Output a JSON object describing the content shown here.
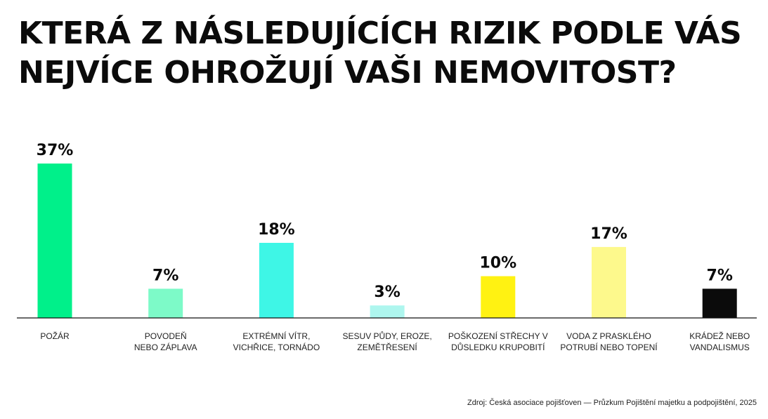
{
  "title": "KTERÁ Z NÁSLEDUJÍCÍCH RIZIK PODLE VÁS NEJVÍCE OHROŽUJÍ VAŠI NEMOVITOST?",
  "source": "Zdroj: Česká asociace pojišťoven — Průzkum Pojištění majetku a podpojištění, 2025",
  "chart_data": {
    "type": "bar",
    "title": "KTERÁ Z NÁSLEDUJÍCÍCH RIZIK PODLE VÁS NEJVÍCE OHROŽUJÍ VAŠI NEMOVITOST?",
    "categories": [
      [
        "POŽÁR"
      ],
      [
        "POVODEŇ",
        "NEBO ZÁPLAVA"
      ],
      [
        "EXTRÉMNÍ VÍTR,",
        "VICHŘICE, TORNÁDO"
      ],
      [
        "SESUV PŮDY, EROZE,",
        "ZEMĚTŘESENÍ"
      ],
      [
        "POŠKOZENÍ STŘECHY V",
        "DŮSLEDKU KRUPOBITÍ"
      ],
      [
        "VODA Z PRASKLÉHO",
        "POTRUBÍ NEBO TOPENÍ"
      ],
      [
        "KRÁDEŽ NEBO",
        "VANDALISMUS"
      ]
    ],
    "values": [
      37,
      7,
      18,
      3,
      10,
      17,
      7
    ],
    "value_labels": [
      "37%",
      "7%",
      "18%",
      "3%",
      "10%",
      "17%",
      "7%"
    ],
    "colors": [
      "#00f08a",
      "#7dfac8",
      "#3ef6e6",
      "#aef6ee",
      "#fff212",
      "#fdf98c",
      "#0b0b0b"
    ],
    "ylim": [
      0,
      37
    ],
    "xlabel": "",
    "ylabel": "",
    "grid": false,
    "legend": "none"
  }
}
